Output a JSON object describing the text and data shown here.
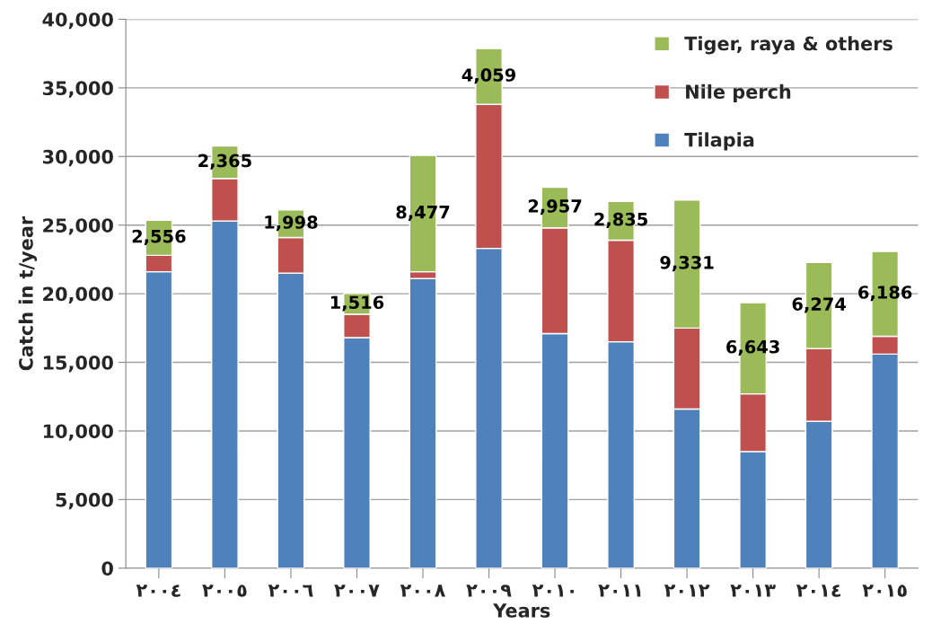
{
  "chart_data": {
    "type": "bar",
    "stacked": true,
    "xlabel": "Years",
    "ylabel": "Catch in t/year",
    "categories": [
      "٢٠٠٤",
      "٢٠٠٥",
      "٢٠٠٦",
      "٢٠٠٧",
      "٢٠٠٨",
      "٢٠٠٩",
      "٢٠١٠",
      "٢٠١١",
      "٢٠١٢",
      "٢٠١٣",
      "٢٠١٤",
      "٢٠١٥"
    ],
    "series": [
      {
        "name": "Tilapia",
        "color": "#4f81bd",
        "values": [
          21600,
          25300,
          21500,
          16800,
          21100,
          23300,
          17100,
          16500,
          11600,
          8500,
          10700,
          15600
        ]
      },
      {
        "name": "Nile perch",
        "color": "#c0504d",
        "values": [
          1200,
          3100,
          2600,
          1700,
          500,
          10500,
          7700,
          7400,
          5900,
          4200,
          5300,
          1300
        ]
      },
      {
        "name": "Tiger, raya & others",
        "color": "#9bbb59",
        "values": [
          2556,
          2365,
          1998,
          1516,
          8477,
          4059,
          2957,
          2835,
          9331,
          6643,
          6274,
          6186
        ],
        "value_labels": [
          "2,556",
          "2,365",
          "1,998",
          "1,516",
          "8,477",
          "4,059",
          "2,957",
          "2,835",
          "9,331",
          "6,643",
          "6,274",
          "6,186"
        ]
      }
    ],
    "ylim": [
      0,
      40000
    ],
    "yticks": [
      {
        "value": 0,
        "label": "0"
      },
      {
        "value": 5000,
        "label": "5,000"
      },
      {
        "value": 10000,
        "label": "10,000"
      },
      {
        "value": 15000,
        "label": "15,000"
      },
      {
        "value": 20000,
        "label": "20,000"
      },
      {
        "value": 25000,
        "label": "25,000"
      },
      {
        "value": 30000,
        "label": "30,000"
      },
      {
        "value": 35000,
        "label": "35,000"
      },
      {
        "value": 40000,
        "label": "40,000"
      }
    ],
    "grid": "y",
    "legend": "top right"
  }
}
